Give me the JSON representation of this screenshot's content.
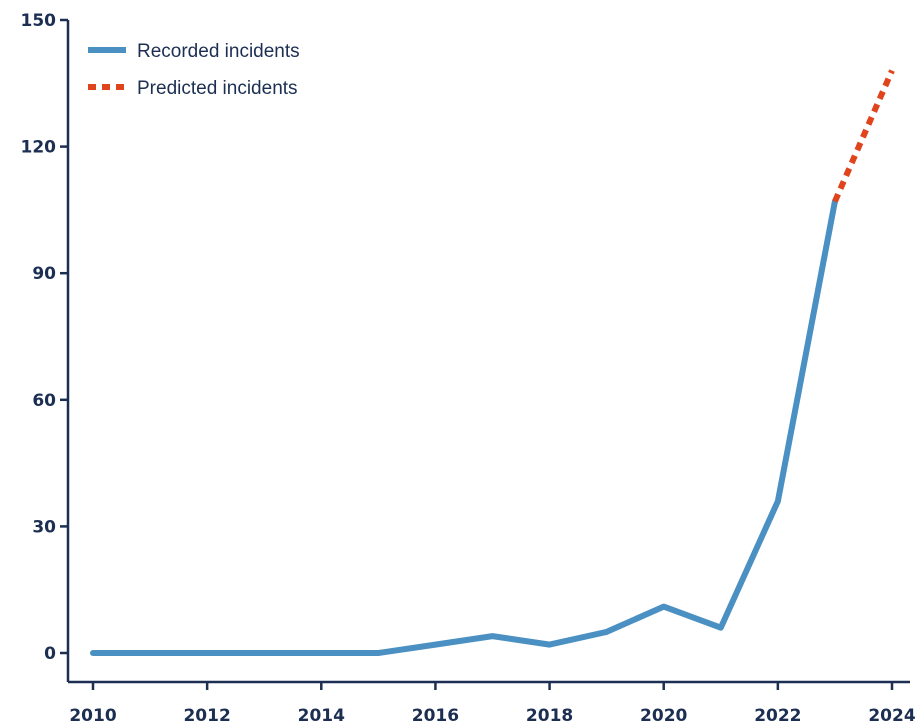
{
  "chart_data": {
    "type": "line",
    "title": "",
    "xlabel": "",
    "ylabel": "",
    "xlim": [
      2010,
      2024
    ],
    "ylim": [
      0,
      150
    ],
    "x_ticks": [
      "2010",
      "2012",
      "2014",
      "2016",
      "2018",
      "2020",
      "2022",
      "2024"
    ],
    "y_ticks": [
      "0",
      "30",
      "60",
      "90",
      "120",
      "150"
    ],
    "grid": false,
    "legend_position": "top-left",
    "series": [
      {
        "name": "Recorded incidents",
        "style": "solid",
        "color": "#4a90c2",
        "x": [
          2010,
          2011,
          2012,
          2013,
          2014,
          2015,
          2016,
          2017,
          2018,
          2019,
          2020,
          2021,
          2022,
          2023
        ],
        "y": [
          0,
          0,
          0,
          0,
          0,
          0,
          2,
          4,
          2,
          5,
          11,
          6,
          36,
          107
        ]
      },
      {
        "name": "Predicted incidents",
        "style": "dotted",
        "color": "#e0441c",
        "x": [
          2023,
          2024
        ],
        "y": [
          107,
          138
        ]
      }
    ]
  },
  "colors": {
    "axis": "#1c2f52",
    "recorded": "#4a90c2",
    "predicted": "#e0441c"
  }
}
